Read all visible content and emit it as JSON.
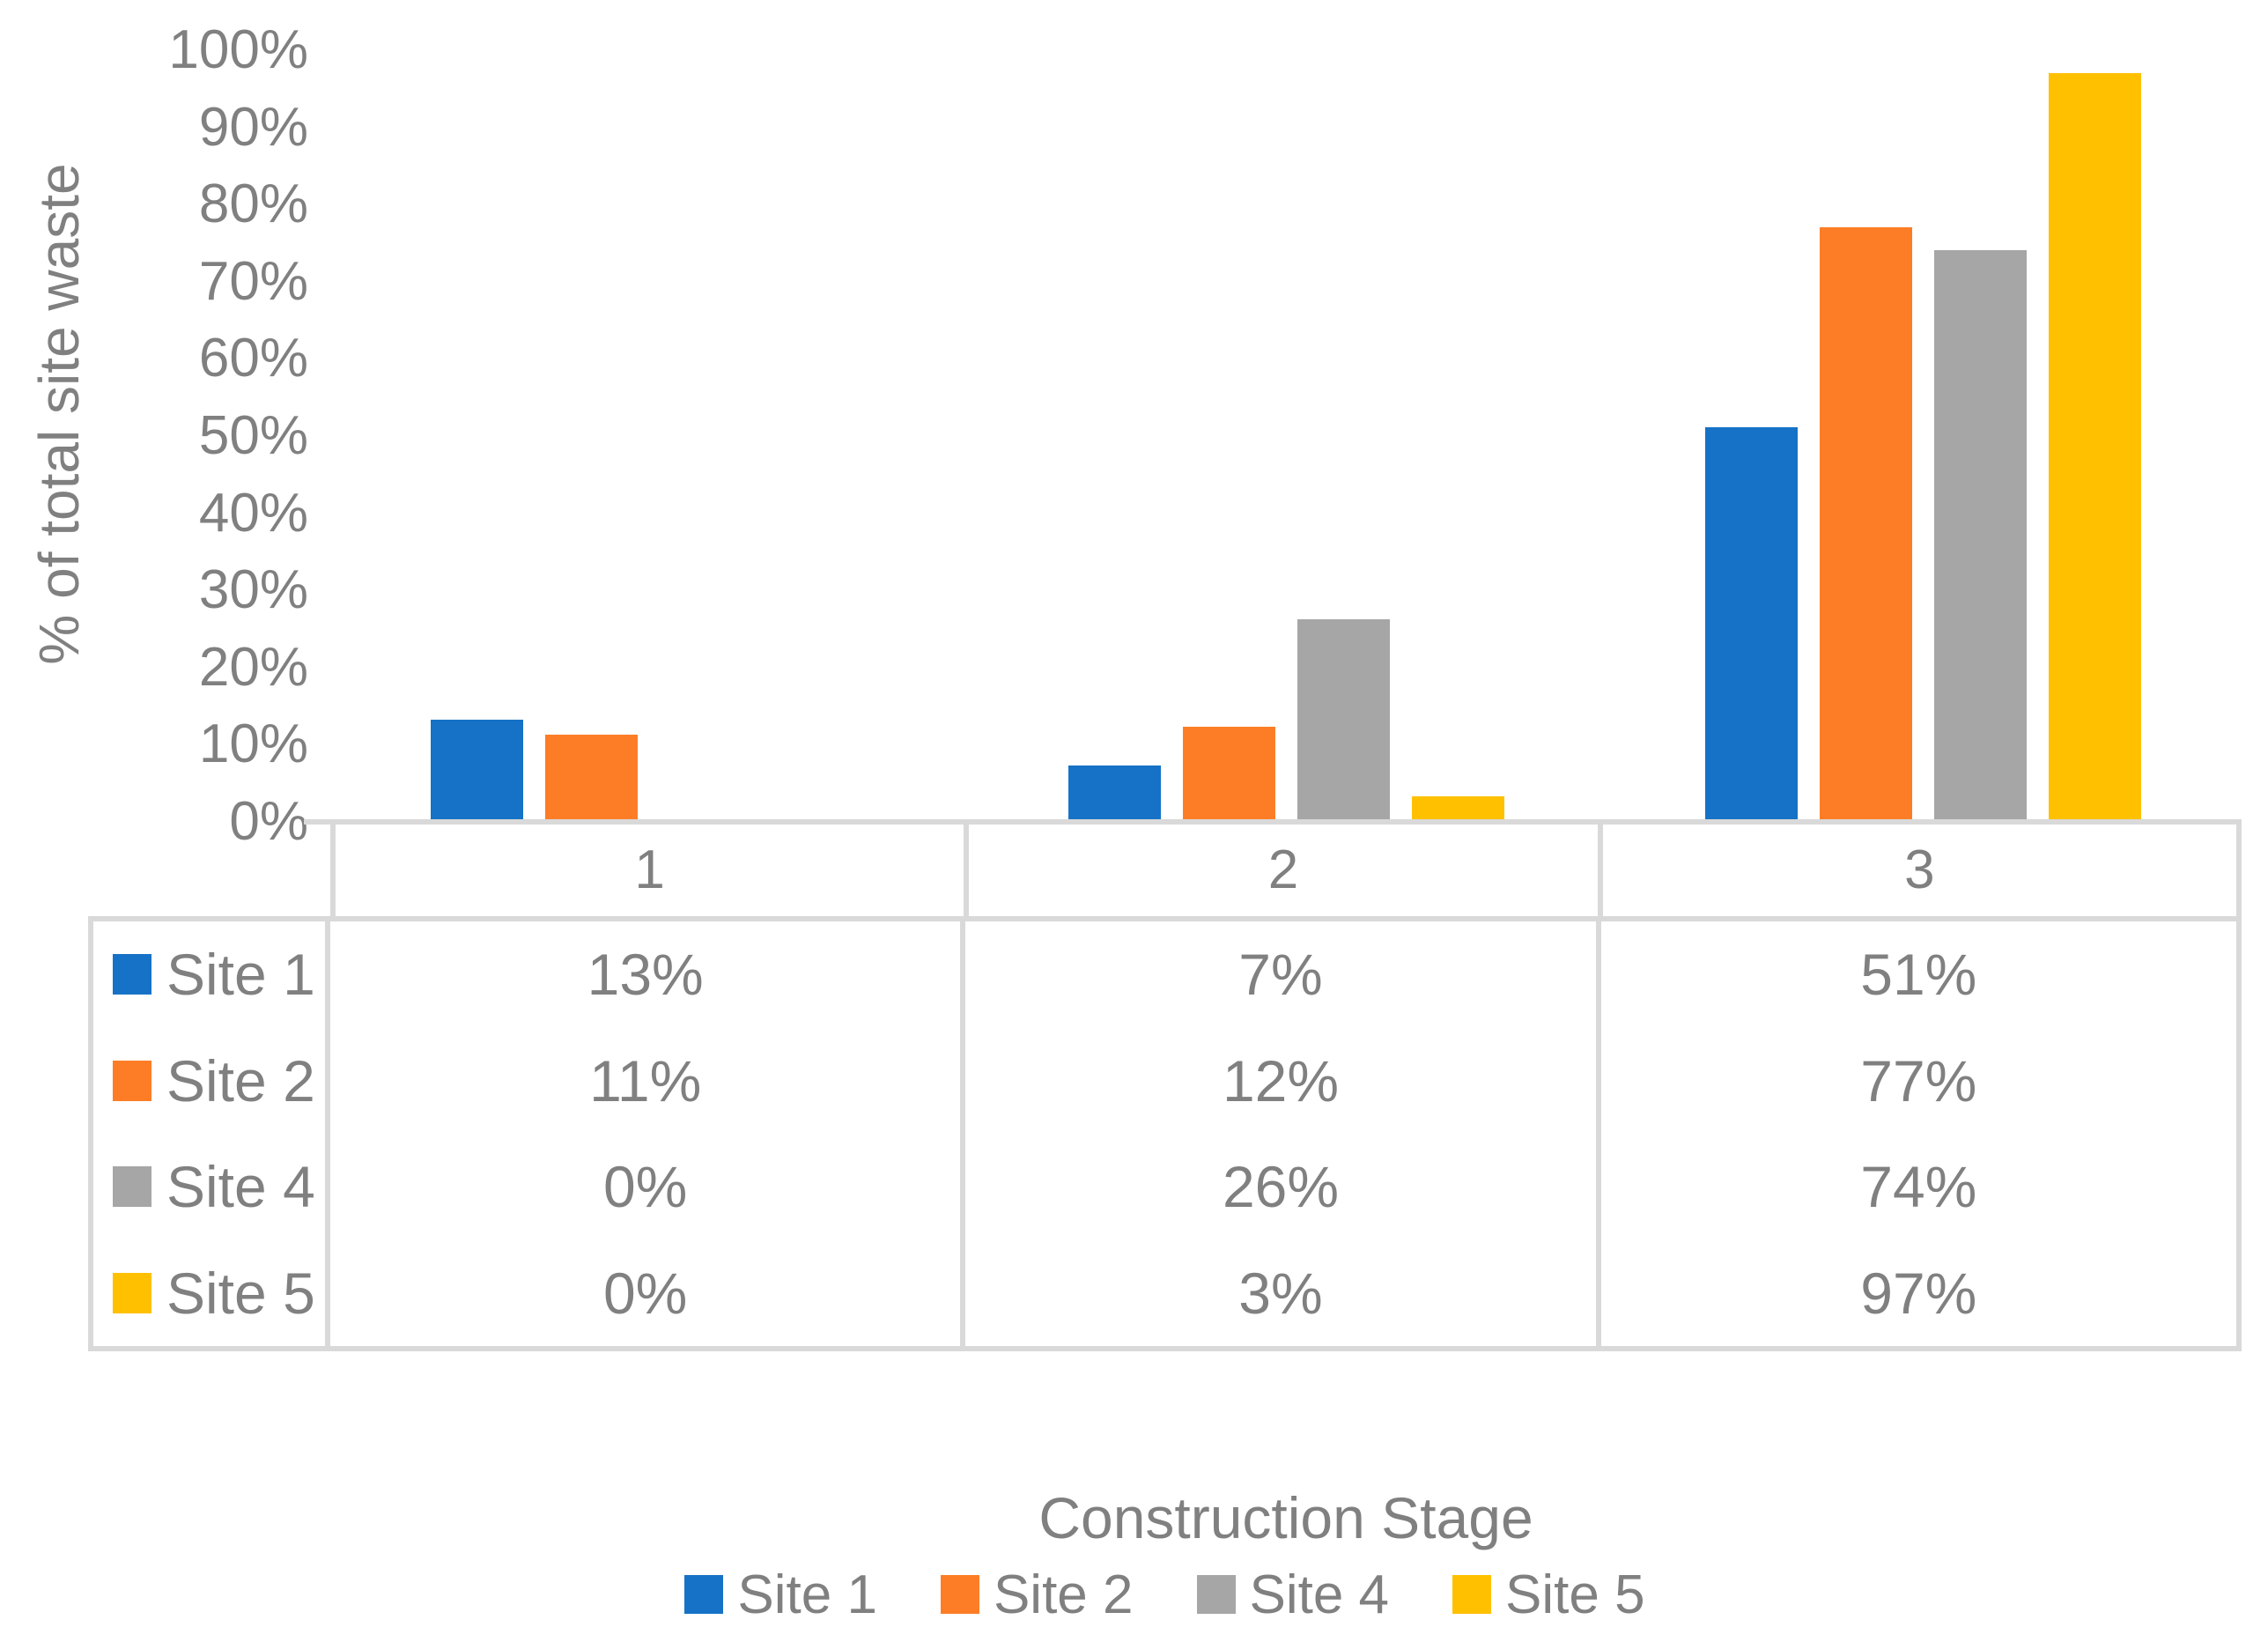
{
  "colors": {
    "site1": "#1672C6",
    "site2": "#FC7D26",
    "site4": "#A6A6A6",
    "site5": "#FFC000",
    "border": "#D9D9D9",
    "text": "#808080"
  },
  "chart_data": {
    "type": "bar",
    "title": "",
    "xlabel": "Construction Stage",
    "ylabel": "% of total site waste",
    "categories": [
      "1",
      "2",
      "3"
    ],
    "series": [
      {
        "name": "Site 1",
        "color": "#1672C6",
        "values": [
          13,
          7,
          51
        ]
      },
      {
        "name": "Site 2",
        "color": "#FC7D26",
        "values": [
          11,
          12,
          77
        ]
      },
      {
        "name": "Site 4",
        "color": "#A6A6A6",
        "values": [
          0,
          26,
          74
        ]
      },
      {
        "name": "Site 5",
        "color": "#FFC000",
        "values": [
          0,
          3,
          97
        ]
      }
    ],
    "ylim": [
      0,
      100
    ],
    "ytick_step": 10,
    "ytick_labels": [
      "0%",
      "10%",
      "20%",
      "30%",
      "40%",
      "50%",
      "60%",
      "70%",
      "80%",
      "90%",
      "100%"
    ],
    "grid": false,
    "legend_position": "bottom",
    "data_table_shown": true
  },
  "data_table": {
    "column_headers": [
      "1",
      "2",
      "3"
    ],
    "rows": [
      {
        "label": "Site 1",
        "color": "#1672C6",
        "cells": [
          "13%",
          "7%",
          "51%"
        ]
      },
      {
        "label": "Site 2",
        "color": "#FC7D26",
        "cells": [
          "11%",
          "12%",
          "77%"
        ]
      },
      {
        "label": "Site 4",
        "color": "#A6A6A6",
        "cells": [
          "0%",
          "26%",
          "74%"
        ]
      },
      {
        "label": "Site 5",
        "color": "#FFC000",
        "cells": [
          "0%",
          "3%",
          "97%"
        ]
      }
    ]
  },
  "legend": {
    "items": [
      {
        "label": "Site 1",
        "color": "#1672C6"
      },
      {
        "label": "Site 2",
        "color": "#FC7D26"
      },
      {
        "label": "Site 4",
        "color": "#A6A6A6"
      },
      {
        "label": "Site 5",
        "color": "#FFC000"
      }
    ]
  }
}
